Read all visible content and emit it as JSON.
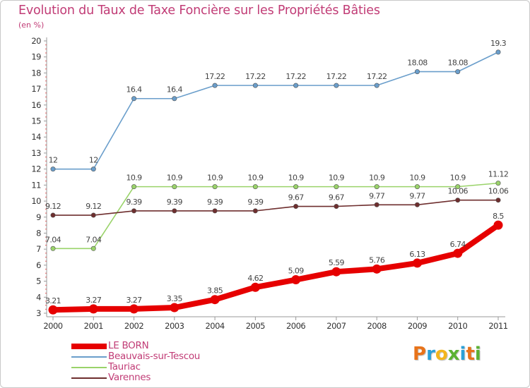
{
  "header": {
    "title": "Evolution du Taux de Taxe Foncière sur les Propriétés Bâties",
    "unit": "(en %)"
  },
  "logo": {
    "letters": [
      "P",
      "r",
      "o",
      "x",
      "i",
      "t",
      "i"
    ],
    "colors": [
      "#e8731a",
      "#2aa0d8",
      "#f3b51c",
      "#5bb232",
      "#2aa0d8",
      "#e8731a",
      "#5bb232"
    ]
  },
  "chart_data": {
    "type": "line",
    "title": "Evolution du Taux de Taxe Foncière sur les Propriétés Bâties",
    "ylabel": "(en %)",
    "xlabel": "",
    "x": [
      "2000",
      "2001",
      "2002",
      "2003",
      "2004",
      "2005",
      "2006",
      "2007",
      "2008",
      "2009",
      "2010",
      "2011"
    ],
    "ylim": [
      3,
      20
    ],
    "yticks": [
      3,
      4,
      5,
      6,
      7,
      8,
      9,
      10,
      11,
      12,
      13,
      14,
      15,
      16,
      17,
      18,
      19,
      20
    ],
    "grid": false,
    "legend_position": "bottom-left",
    "series": [
      {
        "name": "LE BORN",
        "color": "#e60000",
        "values": [
          3.21,
          3.27,
          3.27,
          3.35,
          3.85,
          4.62,
          5.09,
          5.59,
          5.76,
          6.13,
          6.74,
          8.5
        ],
        "labels": [
          "3.21",
          "3.27",
          "3.27",
          "3.35",
          "3.85",
          "4.62",
          "5.09",
          "5.59",
          "5.76",
          "6.13",
          "6.74",
          "8.5"
        ]
      },
      {
        "name": "Beauvais-sur-Tescou",
        "color": "#6a9ecb",
        "values": [
          12,
          12,
          16.4,
          16.4,
          17.22,
          17.22,
          17.22,
          17.22,
          17.22,
          18.08,
          18.08,
          19.3
        ],
        "labels": [
          "12",
          "12",
          "16.4",
          "16.4",
          "17.22",
          "17.22",
          "17.22",
          "17.22",
          "17.22",
          "18.08",
          "18.08",
          "19.3"
        ]
      },
      {
        "name": "Tauriac",
        "color": "#9ad36a",
        "values": [
          7.04,
          7.04,
          10.9,
          10.9,
          10.9,
          10.9,
          10.9,
          10.9,
          10.9,
          10.9,
          10.9,
          11.12
        ],
        "labels": [
          "7.04",
          "7.04",
          "10.9",
          "10.9",
          "10.9",
          "10.9",
          "10.9",
          "10.9",
          "10.9",
          "10.9",
          "10.9",
          "11.12"
        ]
      },
      {
        "name": "Varennes",
        "color": "#6e2e2e",
        "values": [
          9.12,
          9.12,
          9.39,
          9.39,
          9.39,
          9.39,
          9.67,
          9.67,
          9.77,
          9.77,
          10.06,
          10.06
        ],
        "labels": [
          "9.12",
          "9.12",
          "9.39",
          "9.39",
          "9.39",
          "9.39",
          "9.67",
          "9.67",
          "9.77",
          "9.77",
          "10.06",
          "10.06"
        ]
      }
    ]
  }
}
